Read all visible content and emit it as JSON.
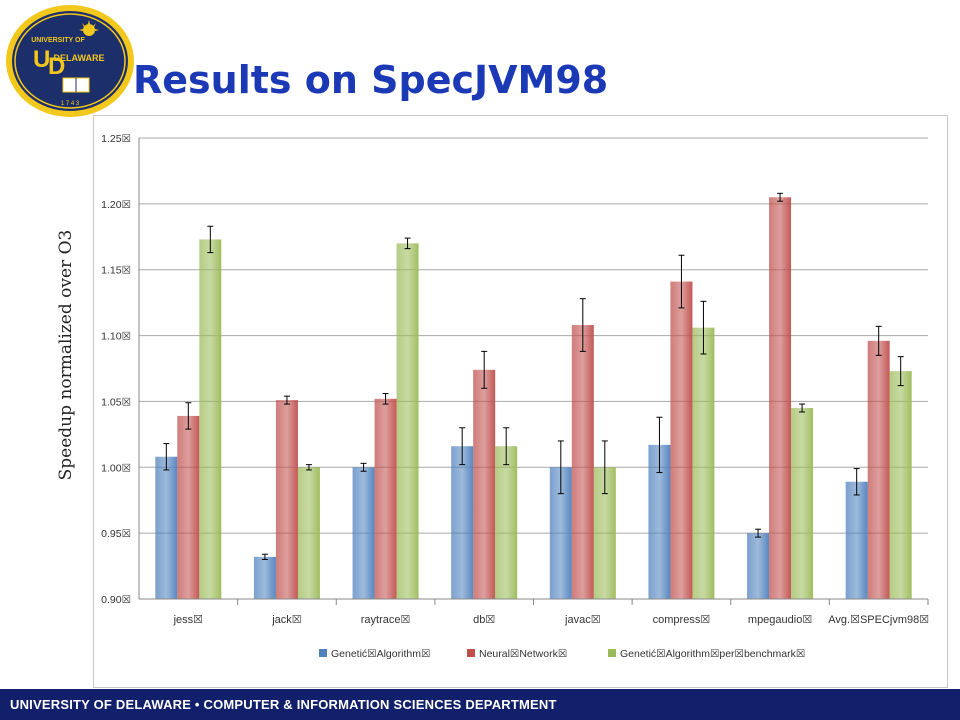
{
  "slide": {
    "title": "Results on SpecJVM98",
    "ylabel": "Speedup normalized over O3",
    "footer": "UNIVERSITY OF DELAWARE • COMPUTER & INFORMATION SCIENCES DEPARTMENT",
    "logo": {
      "top_text": "UNIVERSITY OF",
      "main_text": "DELAWARE",
      "monogram": "UD",
      "year": "1 7 4 3",
      "colors": {
        "navy": "#1c2f6b",
        "gold": "#f3c81c"
      }
    }
  },
  "colors": {
    "title": "#1c39b5",
    "footer_bg": "#12206b"
  },
  "chart_data": {
    "type": "bar",
    "categories": [
      "jess",
      "jack",
      "raytrace",
      "db",
      "javac",
      "compress",
      "mpegaudio",
      "Avg. SPECjvm98"
    ],
    "category_labels": [
      "jess☒",
      "jack☒",
      "raytrace☒",
      "db☒",
      "javac☒",
      "compress☒",
      "mpegaudio☒",
      "Avg.☒SPECjvm98☒"
    ],
    "series": [
      {
        "name": "Genetic Algorithm",
        "label": "Genetić☒Algorithm☒",
        "color": "#4f81bd",
        "values": [
          1.008,
          0.932,
          1.0,
          1.016,
          1.0,
          1.017,
          0.95,
          0.989
        ],
        "errors": [
          0.01,
          0.002,
          0.003,
          0.014,
          0.02,
          0.021,
          0.003,
          0.01
        ]
      },
      {
        "name": "Neural Network",
        "label": "Neural☒Network☒",
        "color": "#c0504d",
        "values": [
          1.039,
          1.051,
          1.052,
          1.074,
          1.108,
          1.141,
          1.205,
          1.096
        ],
        "errors": [
          0.01,
          0.003,
          0.004,
          0.014,
          0.02,
          0.02,
          0.003,
          0.011
        ]
      },
      {
        "name": "Genetic Algorithm per benchmark",
        "label": "Genetić☒Algorithm☒per☒benchmark☒",
        "color": "#9bbb59",
        "values": [
          1.173,
          1.0,
          1.17,
          1.016,
          1.0,
          1.106,
          1.045,
          1.073
        ],
        "errors": [
          0.01,
          0.002,
          0.004,
          0.014,
          0.02,
          0.02,
          0.003,
          0.011
        ]
      }
    ],
    "ylim": [
      0.9,
      1.25
    ],
    "yticks": [
      "0.90☒",
      "0.95☒",
      "1.00☒",
      "1.05☒",
      "1.10☒",
      "1.15☒",
      "1.20☒",
      "1.25☒"
    ],
    "ytick_values": [
      0.9,
      0.95,
      1.0,
      1.05,
      1.1,
      1.15,
      1.2,
      1.25
    ],
    "ylabel": "Speedup normalized over O3",
    "grid": true,
    "legend": "bottom"
  }
}
